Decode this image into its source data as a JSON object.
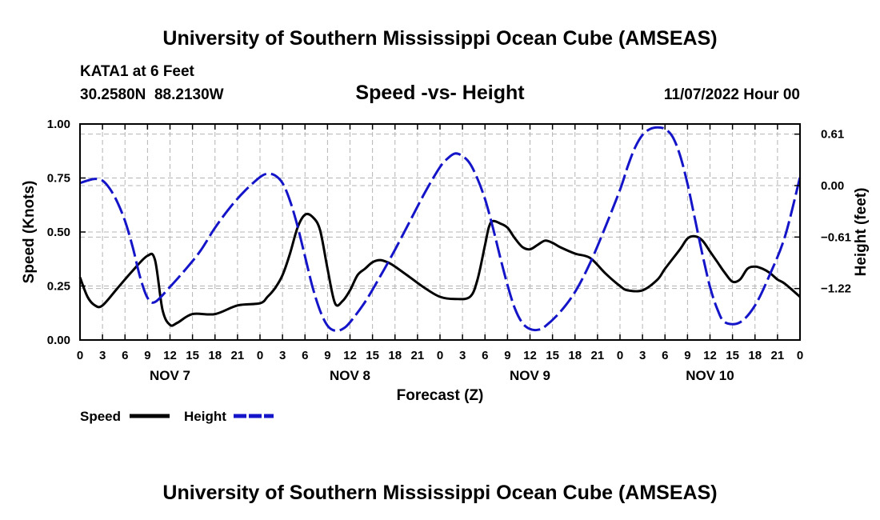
{
  "header": {
    "title": "University of Southern Mississippi Ocean Cube (AMSEAS)",
    "station": "KATA1 at 6 Feet",
    "coords": "30.2580N  88.2130W",
    "chart_title": "Speed -vs- Height",
    "date": "11/07/2022 Hour 00"
  },
  "footer": {
    "title": "University of Southern Mississippi Ocean Cube (AMSEAS)"
  },
  "legend": {
    "speed_label": "Speed",
    "height_label": "Height"
  },
  "colors": {
    "speed": "#000000",
    "height": "#1414c8",
    "grid": "#b4b4b4"
  },
  "chart_data": {
    "type": "line",
    "title": "Speed -vs- Height",
    "xlabel": "Forecast (Z)",
    "ylabel_left": "Speed (Knots)",
    "ylabel_right": "Height (feet)",
    "xlim": [
      0,
      96
    ],
    "ylim_left": [
      0,
      1.0
    ],
    "ylim_right": [
      -1.83,
      0.73
    ],
    "yticks_left": [
      "0.00",
      "0.25",
      "0.50",
      "0.75",
      "1.00"
    ],
    "yticks_left_values": [
      0,
      0.25,
      0.5,
      0.75,
      1.0
    ],
    "yticks_right": [
      "0.61",
      "0.00",
      "−0.61",
      "−1.22"
    ],
    "yticks_right_values": [
      0.61,
      0,
      -0.61,
      -1.22
    ],
    "xticks": [
      "0",
      "3",
      "6",
      "9",
      "12",
      "15",
      "18",
      "21",
      "0",
      "3",
      "6",
      "9",
      "12",
      "15",
      "18",
      "21",
      "0",
      "3",
      "6",
      "9",
      "12",
      "15",
      "18",
      "21",
      "0",
      "3",
      "6",
      "9",
      "12",
      "15",
      "18",
      "21",
      "0"
    ],
    "days": [
      {
        "label": "NOV 7",
        "hour": 12
      },
      {
        "label": "NOV 8",
        "hour": 36
      },
      {
        "label": "NOV 9",
        "hour": 60
      },
      {
        "label": "NOV 10",
        "hour": 84
      }
    ],
    "grid": true,
    "series": [
      {
        "name": "Speed",
        "axis": "left",
        "style": "solid",
        "x": [
          0,
          1,
          2,
          3,
          5,
          7,
          9,
          10,
          11,
          12,
          13,
          15,
          18,
          21,
          24,
          25,
          26,
          27,
          28,
          29,
          30,
          31,
          32,
          33,
          34,
          35,
          36,
          37,
          38,
          39,
          40,
          41,
          42,
          44,
          46,
          48,
          50,
          52,
          53,
          54,
          54.5,
          55,
          56,
          57,
          58,
          59,
          60,
          61,
          62,
          63,
          64,
          66,
          68,
          70,
          72,
          73,
          75,
          77,
          78,
          80,
          81,
          82,
          83,
          84,
          85,
          86,
          87,
          88,
          89,
          90,
          91,
          92,
          93,
          94,
          96
        ],
        "values": [
          0.29,
          0.2,
          0.16,
          0.16,
          0.24,
          0.32,
          0.39,
          0.37,
          0.14,
          0.07,
          0.08,
          0.12,
          0.12,
          0.16,
          0.17,
          0.2,
          0.24,
          0.3,
          0.4,
          0.52,
          0.58,
          0.57,
          0.51,
          0.33,
          0.17,
          0.18,
          0.23,
          0.3,
          0.33,
          0.36,
          0.37,
          0.36,
          0.34,
          0.29,
          0.24,
          0.2,
          0.19,
          0.2,
          0.28,
          0.44,
          0.52,
          0.55,
          0.54,
          0.52,
          0.47,
          0.43,
          0.42,
          0.44,
          0.46,
          0.45,
          0.43,
          0.4,
          0.38,
          0.31,
          0.25,
          0.23,
          0.23,
          0.28,
          0.33,
          0.42,
          0.47,
          0.48,
          0.46,
          0.41,
          0.36,
          0.31,
          0.27,
          0.28,
          0.33,
          0.34,
          0.33,
          0.31,
          0.28,
          0.26,
          0.2
        ]
      },
      {
        "name": "Height",
        "axis": "right",
        "style": "dashed",
        "x": [
          0,
          1,
          2,
          3,
          4,
          5,
          6,
          7,
          8,
          9,
          10,
          12,
          14,
          16,
          18,
          20,
          22,
          24,
          25,
          26,
          27,
          28,
          29,
          30,
          31,
          32,
          33,
          34,
          35,
          36,
          38,
          40,
          42,
          44,
          46,
          48,
          49,
          50,
          51,
          52,
          53,
          54,
          55,
          56,
          57,
          58,
          59,
          60,
          61,
          62,
          64,
          66,
          68,
          70,
          72,
          73,
          74,
          75,
          76,
          77,
          78,
          79,
          80,
          81,
          82,
          83,
          84,
          85,
          86,
          88,
          90,
          92,
          94,
          96
        ],
        "values": [
          0.03,
          0.06,
          0.08,
          0.06,
          -0.04,
          -0.2,
          -0.42,
          -0.72,
          -1.08,
          -1.33,
          -1.38,
          -1.2,
          -1.0,
          -0.78,
          -0.5,
          -0.26,
          -0.06,
          0.1,
          0.14,
          0.12,
          0.03,
          -0.18,
          -0.48,
          -0.84,
          -1.2,
          -1.48,
          -1.66,
          -1.72,
          -1.7,
          -1.62,
          -1.38,
          -1.08,
          -0.76,
          -0.42,
          -0.08,
          0.22,
          0.32,
          0.38,
          0.35,
          0.26,
          0.08,
          -0.16,
          -0.48,
          -0.84,
          -1.18,
          -1.46,
          -1.63,
          -1.7,
          -1.71,
          -1.67,
          -1.5,
          -1.26,
          -0.92,
          -0.5,
          -0.05,
          0.22,
          0.45,
          0.6,
          0.67,
          0.69,
          0.67,
          0.58,
          0.36,
          0.02,
          -0.4,
          -0.82,
          -1.2,
          -1.47,
          -1.62,
          -1.62,
          -1.42,
          -1.05,
          -0.6,
          0.1
        ]
      }
    ]
  }
}
